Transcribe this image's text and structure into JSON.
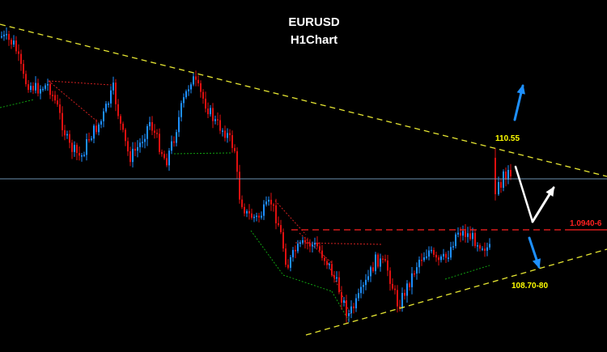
{
  "chart_data": {
    "type": "candlestick",
    "title": "EURUSD",
    "subtitle": "H1Chart",
    "grid": false,
    "colors": {
      "background": "#000000",
      "up_candle": "#1e90ff",
      "down_candle": "#e01010",
      "trendline": "#e6e632",
      "current_price_line": "#6b8fb0",
      "resistance_line": "#ff2020",
      "support_label": "#ffff00",
      "up_arrow": "#1e90ff",
      "down_arrow": "#1e90ff",
      "scenario_arrow": "#ffffff",
      "pattern_red": "#d02020",
      "pattern_green": "#10a010"
    },
    "levels": [
      {
        "label": "110.55",
        "role": "upper-trendline-target",
        "color": "#ffff00"
      },
      {
        "label": "1.0940-6",
        "role": "horizontal-resistance",
        "color": "#ff2020"
      },
      {
        "label": "108.70-80",
        "role": "lower-trendline-target",
        "color": "#ffff00"
      }
    ],
    "arrows": [
      {
        "name": "bullish-breakout",
        "direction": "up",
        "color": "#1e90ff"
      },
      {
        "name": "bearish-breakdown",
        "direction": "down",
        "color": "#1e90ff"
      },
      {
        "name": "dip-then-rebound",
        "direction": "down-up",
        "color": "#ffffff"
      }
    ]
  }
}
